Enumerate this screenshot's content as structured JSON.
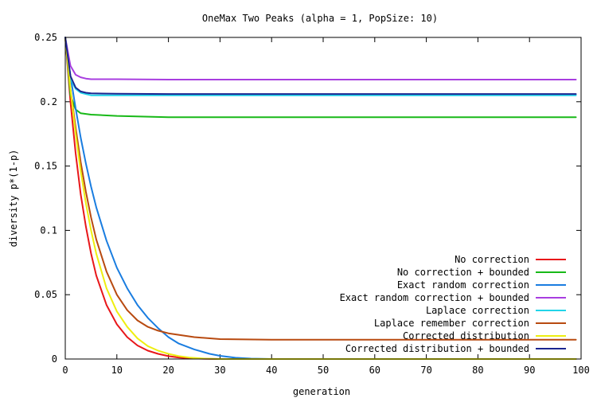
{
  "chart_data": {
    "type": "line",
    "title": "OneMax Two Peaks (alpha = 1, PopSize: 10)",
    "xlabel": "generation",
    "ylabel": "diversity p*(1-p)",
    "xlim": [
      0,
      100
    ],
    "ylim": [
      0,
      0.25
    ],
    "x_ticks": [
      0,
      10,
      20,
      30,
      40,
      50,
      60,
      70,
      80,
      90,
      100
    ],
    "y_ticks": [
      0,
      0.05,
      0.1,
      0.15,
      0.2,
      0.25
    ],
    "grid": false,
    "legend_position": "bottom-right",
    "series": [
      {
        "name": "No correction",
        "color": "#e8171a",
        "x": [
          0,
          1,
          2,
          3,
          4,
          5,
          6,
          8,
          10,
          12,
          14,
          16,
          18,
          20,
          22,
          25,
          30,
          99
        ],
        "y": [
          0.25,
          0.2,
          0.16,
          0.128,
          0.103,
          0.082,
          0.065,
          0.042,
          0.027,
          0.017,
          0.0105,
          0.0065,
          0.004,
          0.0022,
          0.0012,
          0.0004,
          0,
          0
        ]
      },
      {
        "name": "No correction + bounded",
        "color": "#18b918",
        "x": [
          0,
          1,
          2,
          3,
          5,
          10,
          20,
          30,
          40,
          50,
          60,
          70,
          80,
          90,
          99
        ],
        "y": [
          0.25,
          0.205,
          0.194,
          0.191,
          0.19,
          0.189,
          0.188,
          0.188,
          0.188,
          0.188,
          0.188,
          0.188,
          0.188,
          0.188,
          0.188
        ]
      },
      {
        "name": "Exact random correction",
        "color": "#1a7de0",
        "x": [
          0,
          1,
          2,
          3,
          4,
          5,
          6,
          8,
          10,
          12,
          14,
          16,
          18,
          20,
          22,
          25,
          28,
          30,
          33,
          36,
          40,
          99
        ],
        "y": [
          0.25,
          0.22,
          0.195,
          0.172,
          0.152,
          0.134,
          0.118,
          0.092,
          0.071,
          0.055,
          0.042,
          0.032,
          0.024,
          0.017,
          0.012,
          0.0075,
          0.004,
          0.0025,
          0.001,
          0.0003,
          0,
          0
        ]
      },
      {
        "name": "Exact random correction + bounded",
        "color": "#a83ee0",
        "x": [
          0,
          1,
          2,
          3,
          4,
          5,
          10,
          20,
          30,
          40,
          50,
          60,
          70,
          80,
          90,
          99
        ],
        "y": [
          0.25,
          0.228,
          0.221,
          0.219,
          0.218,
          0.2175,
          0.2175,
          0.2172,
          0.2172,
          0.2172,
          0.2172,
          0.2172,
          0.2172,
          0.2172,
          0.2172,
          0.2172
        ]
      },
      {
        "name": "Laplace correction",
        "color": "#22d4e8",
        "x": [
          0,
          1,
          2,
          3,
          4,
          5,
          10,
          20,
          30,
          40,
          50,
          60,
          70,
          80,
          90,
          99
        ],
        "y": [
          0.25,
          0.218,
          0.21,
          0.207,
          0.206,
          0.205,
          0.205,
          0.205,
          0.205,
          0.205,
          0.205,
          0.205,
          0.205,
          0.205,
          0.205,
          0.205
        ]
      },
      {
        "name": "Laplace remember correction",
        "color": "#b84a10",
        "x": [
          0,
          1,
          2,
          3,
          4,
          5,
          6,
          8,
          10,
          12,
          14,
          16,
          18,
          20,
          25,
          30,
          40,
          50,
          99
        ],
        "y": [
          0.25,
          0.21,
          0.18,
          0.153,
          0.13,
          0.11,
          0.093,
          0.068,
          0.05,
          0.038,
          0.03,
          0.025,
          0.022,
          0.02,
          0.017,
          0.0155,
          0.015,
          0.015,
          0.015
        ]
      },
      {
        "name": "Corrected distribution",
        "color": "#eeee10",
        "x": [
          0,
          1,
          2,
          3,
          4,
          5,
          6,
          8,
          10,
          12,
          14,
          16,
          18,
          20,
          22,
          24,
          27,
          30,
          99
        ],
        "y": [
          0.25,
          0.21,
          0.175,
          0.146,
          0.121,
          0.1,
          0.082,
          0.055,
          0.037,
          0.025,
          0.016,
          0.01,
          0.0065,
          0.004,
          0.0022,
          0.0012,
          0.0003,
          0,
          0
        ]
      },
      {
        "name": "Corrected distribution + bounded",
        "color": "#1a2590",
        "x": [
          0,
          1,
          2,
          3,
          4,
          5,
          10,
          20,
          30,
          40,
          50,
          60,
          70,
          80,
          90,
          99
        ],
        "y": [
          0.25,
          0.22,
          0.211,
          0.208,
          0.207,
          0.2065,
          0.2062,
          0.206,
          0.206,
          0.206,
          0.206,
          0.206,
          0.206,
          0.206,
          0.206,
          0.206
        ]
      }
    ]
  }
}
